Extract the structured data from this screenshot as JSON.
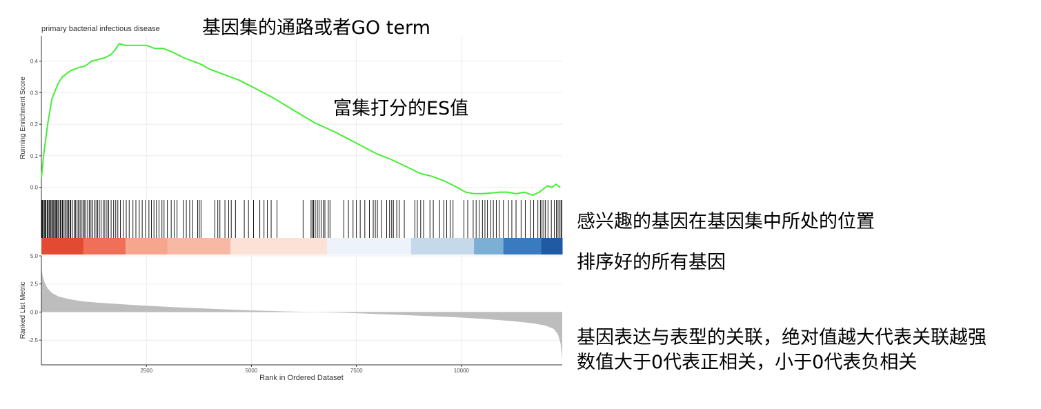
{
  "chart_data": {
    "type": "line",
    "title": "primary bacterial infectious disease",
    "xlabel": "Rank in Ordered Dataset",
    "xlim": [
      0,
      12400
    ],
    "x_ticks": [
      2500,
      5000,
      7500,
      10000
    ],
    "x_tick_labels": [
      "2500",
      "5000",
      "7500",
      "10000"
    ],
    "es_panel": {
      "ylabel": "Running Enrichment Score",
      "ylim": [
        -0.04,
        0.48
      ],
      "y_ticks": [
        0.0,
        0.1,
        0.2,
        0.3,
        0.4
      ],
      "y_tick_labels": [
        "0.0",
        "0.1",
        "0.2",
        "0.3",
        "0.4"
      ],
      "series": [
        {
          "color": "#44ee33",
          "x": [
            0,
            60,
            150,
            250,
            400,
            500,
            700,
            900,
            1050,
            1200,
            1350,
            1500,
            1650,
            1750,
            1850,
            2000,
            2200,
            2500,
            2700,
            2900,
            3100,
            3400,
            3600,
            3800,
            4000,
            4300,
            4700,
            5000,
            5500,
            6000,
            6500,
            7000,
            7500,
            8000,
            8300,
            8700,
            9000,
            9300,
            9600,
            9900,
            10100,
            10300,
            10500,
            10700,
            10900,
            11100,
            11300,
            11500,
            11700,
            11850,
            11950,
            12050,
            12150,
            12250,
            12350
          ],
          "y": [
            0.03,
            0.11,
            0.2,
            0.28,
            0.33,
            0.35,
            0.37,
            0.38,
            0.385,
            0.4,
            0.405,
            0.41,
            0.42,
            0.435,
            0.455,
            0.45,
            0.45,
            0.45,
            0.44,
            0.44,
            0.43,
            0.41,
            0.4,
            0.39,
            0.375,
            0.36,
            0.34,
            0.32,
            0.285,
            0.245,
            0.205,
            0.175,
            0.14,
            0.105,
            0.09,
            0.065,
            0.045,
            0.035,
            0.02,
            0.0,
            -0.015,
            -0.02,
            -0.02,
            -0.018,
            -0.015,
            -0.015,
            -0.02,
            -0.015,
            -0.025,
            -0.015,
            -0.005,
            0.005,
            0.0,
            0.01,
            0.0
          ]
        }
      ]
    },
    "hits_panel": {
      "gene_positions": [
        10,
        25,
        45,
        70,
        90,
        110,
        140,
        160,
        185,
        210,
        230,
        260,
        280,
        300,
        330,
        350,
        370,
        395,
        420,
        450,
        470,
        500,
        520,
        560,
        590,
        620,
        650,
        680,
        700,
        740,
        780,
        810,
        850,
        880,
        920,
        950,
        990,
        1020,
        1060,
        1100,
        1140,
        1180,
        1220,
        1260,
        1300,
        1340,
        1380,
        1420,
        1470,
        1510,
        1560,
        1600,
        1660,
        1720,
        1770,
        1820,
        1880,
        1950,
        2020,
        2090,
        2180,
        2250,
        2330,
        2400,
        2480,
        2560,
        2620,
        2680,
        2740,
        2800,
        2870,
        2920,
        3000,
        3090,
        3160,
        3230,
        3380,
        3450,
        3530,
        3600,
        3720,
        3760,
        3800,
        4130,
        4200,
        4250,
        4370,
        4460,
        4520,
        4620,
        4830,
        4930,
        5050,
        5200,
        5300,
        5380,
        5470,
        5610,
        6230,
        6420,
        6450,
        6480,
        6520,
        6570,
        6610,
        6660,
        6710,
        6750,
        6830,
        6870,
        7200,
        7310,
        7420,
        7500,
        7590,
        7700,
        7810,
        7900,
        7950,
        8000,
        8100,
        8220,
        8290,
        8340,
        8380,
        8460,
        8520,
        8640,
        8890,
        8950,
        9030,
        9100,
        9250,
        9330,
        9480,
        9580,
        9650,
        9730,
        9800,
        10060,
        10150,
        10280,
        10350,
        10420,
        10500,
        10560,
        10620,
        10700,
        10760,
        10830,
        10900,
        11000,
        11120,
        11200,
        11300,
        11420,
        11520,
        11640,
        11720,
        11820,
        11880,
        11920,
        11960,
        12000,
        12060,
        12140,
        12210,
        12260,
        12300,
        12340,
        12370,
        12390
      ]
    },
    "ranking_heatmap": {
      "segments": [
        {
          "from": 0,
          "to": 1000,
          "color": "#e34a33"
        },
        {
          "from": 1000,
          "to": 2000,
          "color": "#ef6f58"
        },
        {
          "from": 2000,
          "to": 3000,
          "color": "#f5a68c"
        },
        {
          "from": 3000,
          "to": 4500,
          "color": "#f7b9a4"
        },
        {
          "from": 4500,
          "to": 6800,
          "color": "#fbe1d6"
        },
        {
          "from": 6800,
          "to": 8800,
          "color": "#eef3fb"
        },
        {
          "from": 8800,
          "to": 10300,
          "color": "#c5d9ea"
        },
        {
          "from": 10300,
          "to": 11000,
          "color": "#7bafd4"
        },
        {
          "from": 11000,
          "to": 11900,
          "color": "#3a7bbf"
        },
        {
          "from": 11900,
          "to": 12400,
          "color": "#1f5aa3"
        }
      ]
    },
    "metric_panel": {
      "ylabel": "Ranked List Metric",
      "ylim": [
        -4.7,
        5.0
      ],
      "y_ticks": [
        5.0,
        2.5,
        0.0,
        -2.5
      ],
      "y_tick_labels": [
        "5.0",
        "2.5",
        "0.0",
        "-2.5"
      ],
      "fill_color": "#bdbdbd",
      "x": [
        0,
        30,
        80,
        150,
        250,
        400,
        600,
        800,
        1000,
        1300,
        1700,
        2200,
        2800,
        3500,
        4300,
        5000,
        5800,
        6500,
        7000,
        7500,
        8200,
        9000,
        9800,
        10500,
        11200,
        11700,
        12000,
        12200,
        12300,
        12360,
        12400
      ],
      "y": [
        4.0,
        3.2,
        2.6,
        2.1,
        1.7,
        1.4,
        1.2,
        1.05,
        0.95,
        0.85,
        0.75,
        0.63,
        0.5,
        0.38,
        0.25,
        0.15,
        0.06,
        0.0,
        -0.04,
        -0.1,
        -0.2,
        -0.32,
        -0.45,
        -0.6,
        -0.8,
        -1.0,
        -1.2,
        -1.5,
        -2.0,
        -2.8,
        -4.2
      ]
    }
  },
  "annotations": {
    "pathway": "基因集的通路或者GO term",
    "es_value": "富集打分的ES值",
    "gene_position": "感兴趣的基因在基因集中所处的位置",
    "ranked_genes": "排序好的所有基因",
    "correlation_line1": "基因表达与表型的关联，绝对值越大代表关联越强",
    "correlation_line2": "数值大于0代表正相关，小于0代表负相关"
  }
}
